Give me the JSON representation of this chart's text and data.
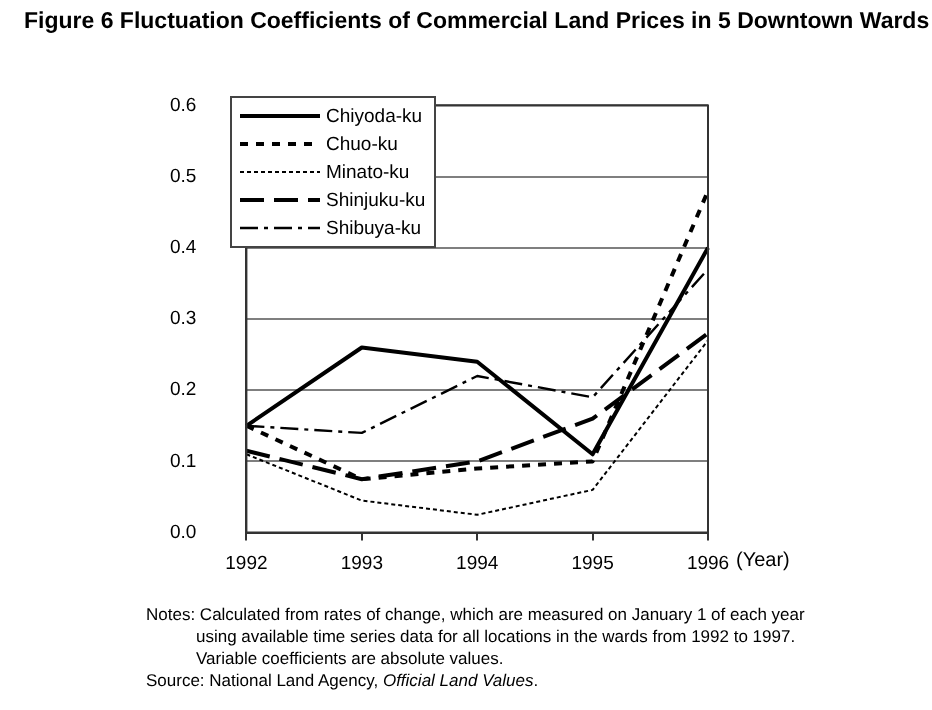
{
  "chart_data": {
    "type": "line",
    "title": "Figure 6  Fluctuation Coefficients of Commercial Land Prices in 5 Downtown Wards",
    "xlabel": "(Year)",
    "categories": [
      "1992",
      "1993",
      "1994",
      "1995",
      "1996"
    ],
    "series": [
      {
        "name": "Chiyoda-ku",
        "color": "#000000",
        "line_style": "solid",
        "values": [
          0.15,
          0.26,
          0.24,
          0.11,
          0.4
        ]
      },
      {
        "name": "Chuo-ku",
        "color": "#000000",
        "line_style": "dashed",
        "values": [
          0.15,
          0.075,
          0.09,
          0.1,
          0.48
        ]
      },
      {
        "name": "Minato-ku",
        "color": "#000000",
        "line_style": "dotted",
        "values": [
          0.11,
          0.045,
          0.025,
          0.06,
          0.27
        ]
      },
      {
        "name": "Shinjuku-ku",
        "color": "#000000",
        "line_style": "dashed",
        "values": [
          0.115,
          0.075,
          0.1,
          0.16,
          0.28
        ]
      },
      {
        "name": "Shibuya-ku",
        "color": "#000000",
        "line_style": "dashed",
        "values": [
          0.15,
          0.14,
          0.22,
          0.19,
          0.37
        ]
      }
    ],
    "ylim": [
      0,
      0.6
    ],
    "yticks": [
      {
        "value": 0,
        "label": "0.0"
      },
      0.1,
      0.2,
      0.3,
      0.4,
      0.5,
      0.6
    ],
    "grid": "y",
    "legend": "top left",
    "marker": "none",
    "annotations": [
      "Notes: Calculated from rates of change, which are measured on January 1 of each year using available time series data for all locations in the wards from 1992 to 1997. Variable coefficients are absolute values.",
      "Source: National Land Agency, Official Land Values."
    ]
  }
}
